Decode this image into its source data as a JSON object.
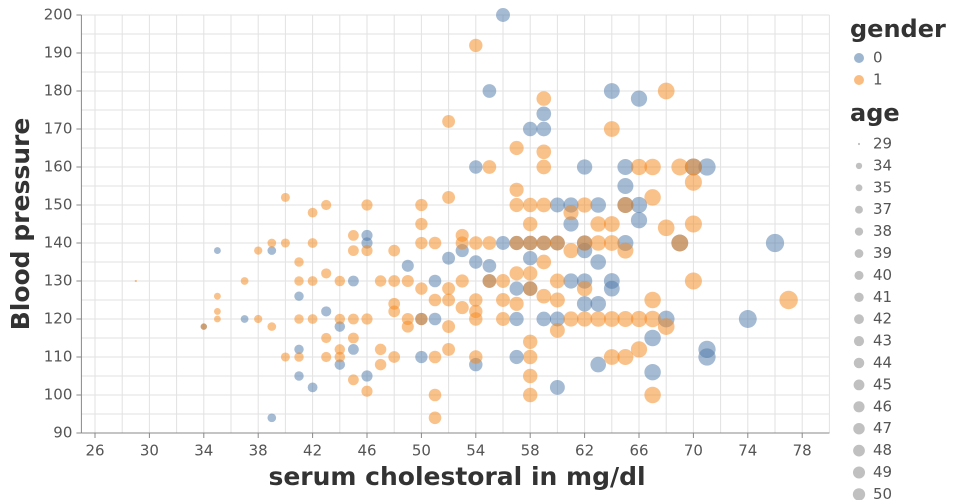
{
  "chart_data": {
    "type": "scatter",
    "x_label": "serum cholestoral in mg/dl",
    "y_label": "Blood pressure",
    "xlim": [
      25,
      80
    ],
    "ylim": [
      90,
      200
    ],
    "xticks": [
      26,
      30,
      34,
      38,
      42,
      46,
      50,
      54,
      58,
      62,
      66,
      70,
      74,
      78
    ],
    "yticks": [
      90,
      100,
      110,
      120,
      130,
      140,
      150,
      160,
      170,
      180,
      190,
      200
    ],
    "xgrid": [
      28,
      32,
      36,
      40,
      44,
      48,
      52,
      56,
      60,
      64,
      68,
      72,
      76,
      80
    ],
    "ygrid": [
      95,
      105,
      115,
      125,
      135,
      145,
      155,
      165,
      175,
      185,
      195
    ],
    "grid": true,
    "color_legend_title": "gender",
    "size_legend_title": "age",
    "size_legend": [
      29,
      34,
      35,
      37,
      38,
      39,
      40,
      41,
      42,
      43,
      44,
      45,
      46,
      47,
      48,
      49,
      50
    ],
    "size_legend_color": "#b0b0b0",
    "series": [
      {
        "name": "0",
        "color": "#4c78a8",
        "x": [
          34,
          35,
          37,
          39,
          39,
          41,
          41,
          41,
          42,
          43,
          44,
          44,
          45,
          45,
          46,
          46,
          46,
          49,
          50,
          50,
          51,
          51,
          52,
          53,
          54,
          54,
          54,
          55,
          55,
          55,
          56,
          56,
          57,
          57,
          57,
          58,
          58,
          58,
          59,
          59,
          59,
          59,
          60,
          60,
          60,
          61,
          61,
          61,
          62,
          62,
          62,
          62,
          63,
          63,
          63,
          63,
          64,
          64,
          65,
          65,
          65,
          65,
          66,
          66,
          66,
          67,
          67,
          68,
          69,
          70,
          71,
          71,
          71,
          74,
          76,
          64,
          58,
          57,
          60,
          62
        ],
        "values": [
          118,
          138,
          120,
          138,
          94,
          126,
          112,
          105,
          102,
          122,
          118,
          108,
          130,
          112,
          140,
          142,
          105,
          134,
          110,
          120,
          130,
          120,
          136,
          138,
          135,
          160,
          108,
          180,
          130,
          134,
          200,
          140,
          140,
          120,
          128,
          170,
          136,
          128,
          174,
          170,
          140,
          120,
          150,
          120,
          102,
          145,
          130,
          150,
          160,
          138,
          130,
          124,
          150,
          135,
          124,
          108,
          180,
          130,
          160,
          155,
          150,
          140,
          178,
          146,
          150,
          115,
          106,
          120,
          140,
          160,
          112,
          110,
          160,
          120,
          140,
          128,
          140,
          110,
          140,
          140
        ]
      },
      {
        "name": "1",
        "color": "#f58518",
        "x": [
          29,
          34,
          35,
          35,
          35,
          37,
          38,
          38,
          39,
          39,
          40,
          40,
          40,
          41,
          41,
          41,
          41,
          42,
          42,
          42,
          42,
          43,
          43,
          43,
          43,
          44,
          44,
          44,
          44,
          45,
          45,
          45,
          45,
          45,
          46,
          46,
          46,
          46,
          47,
          47,
          47,
          48,
          48,
          48,
          48,
          48,
          49,
          49,
          49,
          50,
          50,
          50,
          50,
          50,
          51,
          51,
          51,
          51,
          51,
          52,
          52,
          52,
          52,
          52,
          52,
          53,
          53,
          53,
          53,
          54,
          54,
          54,
          54,
          54,
          54,
          55,
          55,
          55,
          56,
          56,
          56,
          57,
          57,
          57,
          57,
          57,
          57,
          58,
          58,
          58,
          58,
          58,
          58,
          58,
          58,
          58,
          59,
          59,
          59,
          59,
          59,
          59,
          59,
          60,
          60,
          60,
          60,
          61,
          61,
          61,
          62,
          62,
          62,
          62,
          63,
          63,
          63,
          64,
          64,
          64,
          64,
          64,
          65,
          65,
          65,
          65,
          66,
          66,
          66,
          67,
          67,
          67,
          67,
          67,
          68,
          68,
          68,
          69,
          69,
          70,
          70,
          70,
          70,
          77
        ],
        "values": [
          130,
          118,
          126,
          122,
          120,
          130,
          138,
          120,
          140,
          118,
          152,
          140,
          110,
          135,
          130,
          120,
          110,
          148,
          140,
          130,
          120,
          150,
          132,
          115,
          110,
          130,
          120,
          112,
          110,
          142,
          138,
          120,
          115,
          104,
          150,
          138,
          120,
          101,
          130,
          112,
          108,
          138,
          130,
          124,
          122,
          110,
          130,
          118,
          120,
          150,
          145,
          140,
          128,
          120,
          140,
          125,
          110,
          100,
          94,
          172,
          152,
          128,
          125,
          118,
          112,
          142,
          140,
          130,
          123,
          192,
          140,
          125,
          122,
          120,
          110,
          160,
          140,
          130,
          130,
          125,
          120,
          165,
          154,
          150,
          140,
          132,
          124,
          150,
          145,
          140,
          132,
          128,
          114,
          110,
          105,
          100,
          178,
          164,
          160,
          150,
          140,
          135,
          126,
          140,
          130,
          125,
          117,
          148,
          138,
          120,
          150,
          140,
          128,
          120,
          145,
          140,
          120,
          170,
          145,
          140,
          120,
          110,
          150,
          138,
          120,
          110,
          160,
          120,
          112,
          160,
          152,
          125,
          120,
          100,
          180,
          144,
          118,
          160,
          140,
          160,
          156,
          145,
          130,
          125
        ]
      }
    ]
  }
}
